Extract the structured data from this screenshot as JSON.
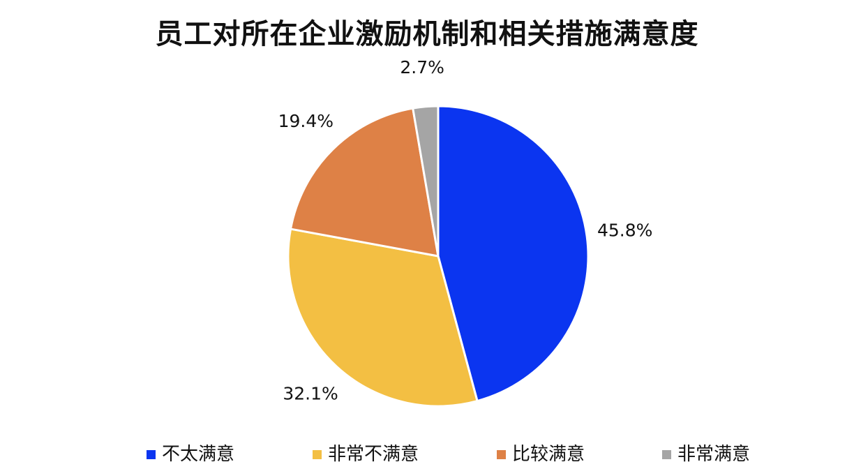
{
  "chart_data": {
    "type": "pie",
    "title": "员工对所在企业激励机制和相关措施满意度",
    "slices": [
      {
        "label": "不太满意",
        "value": 45.8,
        "display": "45.8%",
        "color": "#0B35F0"
      },
      {
        "label": "非常不满意",
        "value": 32.1,
        "display": "32.1%",
        "color": "#F3BF43"
      },
      {
        "label": "比较满意",
        "value": 19.4,
        "display": "19.4%",
        "color": "#DE8146"
      },
      {
        "label": "非常满意",
        "value": 2.7,
        "display": "2.7%",
        "color": "#A5A5A5"
      }
    ],
    "start_angle_deg": 0,
    "direction": "clockwise",
    "legend_position": "bottom"
  }
}
